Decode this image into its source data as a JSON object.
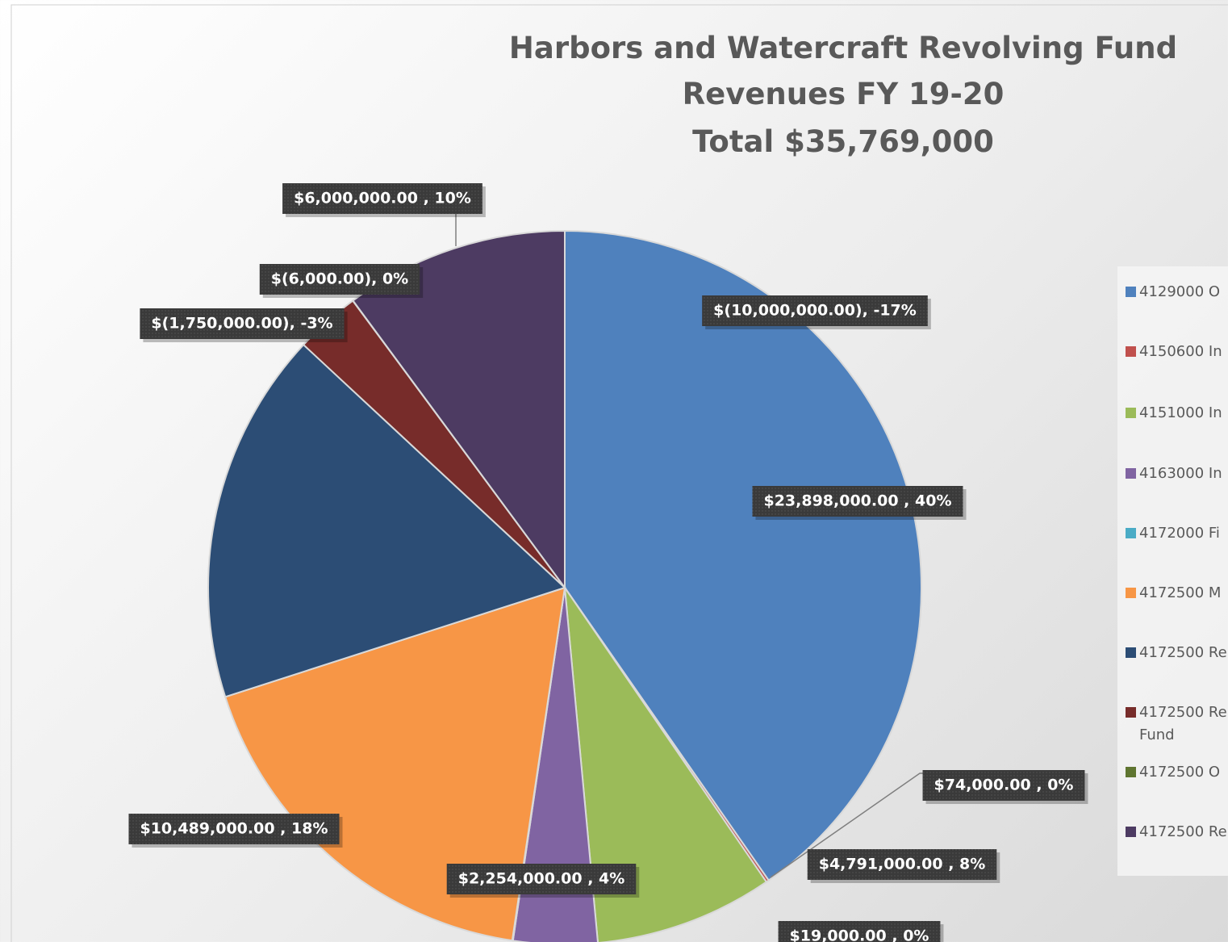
{
  "chart_data": {
    "type": "pie",
    "title": [
      "Harbors and Watercraft Revolving Fund",
      "Revenues FY 19-20",
      "Total $35,769,000"
    ],
    "categories": [
      "4129000 O",
      "4150600 In",
      "4151000 In",
      "4163000 In",
      "4172000 Fi",
      "4172500 M",
      "4172500 Re",
      "4172500 Re Fund",
      "4172500 O",
      "4172500 Re"
    ],
    "values": [
      23898000,
      74000,
      4791000,
      2254000,
      19000,
      10489000,
      -10000000,
      -1750000,
      -6000,
      6000000
    ],
    "value_labels": [
      "$23,898,000.00 , 40%",
      "$74,000.00 , 0%",
      "$4,791,000.00 , 8%",
      "$2,254,000.00 , 4%",
      "$19,000.00 , 0%",
      "$10,489,000.00 , 18%",
      "$(10,000,000.00), -17%",
      "$(1,750,000.00), -3%",
      "$(6,000.00), 0%",
      "$6,000,000.00 , 10%"
    ],
    "colors": [
      "#4f81bd",
      "#c0504d",
      "#9bbb59",
      "#8064a2",
      "#4bacc6",
      "#f79646",
      "#2c4d75",
      "#772c2a",
      "#5f7530",
      "#4d3b62"
    ],
    "legend": "right"
  }
}
